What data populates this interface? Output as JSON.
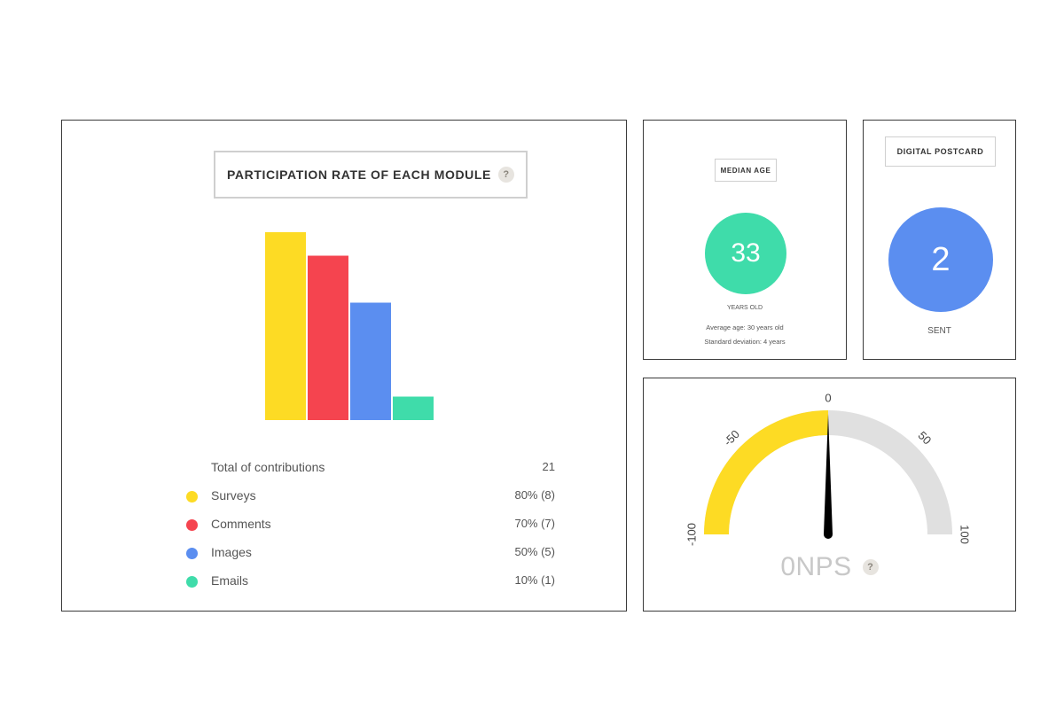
{
  "participation": {
    "title": "PARTICIPATION RATE OF EACH MODULE",
    "help_glyph": "?",
    "total_label": "Total of contributions",
    "total_value": "21",
    "legend": [
      {
        "label": "Surveys",
        "value_text": "80% (8)",
        "color": "#fddb24"
      },
      {
        "label": "Comments",
        "value_text": "70% (7)",
        "color": "#f5444f"
      },
      {
        "label": "Images",
        "value_text": "50% (5)",
        "color": "#5b8ef0"
      },
      {
        "label": "Emails",
        "value_text": "10% (1)",
        "color": "#3fdcaa"
      }
    ]
  },
  "chart_data": {
    "type": "bar",
    "categories": [
      "Surveys",
      "Comments",
      "Images",
      "Emails"
    ],
    "values": [
      80,
      70,
      50,
      10
    ],
    "colors": [
      "#fddb24",
      "#f5444f",
      "#5b8ef0",
      "#3fdcaa"
    ],
    "ylim": [
      0,
      80
    ],
    "grid": false,
    "legend": "bottom"
  },
  "median_age": {
    "title": "MEDIAN AGE",
    "value": "33",
    "unit": "YEARS OLD",
    "average": "Average age: 30 years old",
    "std_dev": "Standard deviation: 4 years",
    "color": "#3fdcaa"
  },
  "postcard": {
    "title": "DIGITAL POSTCARD",
    "value": "2",
    "unit": "SENT",
    "color": "#5b8ef0"
  },
  "nps": {
    "value": 0,
    "min": -100,
    "max": 100,
    "ticks": [
      "-100",
      "-50",
      "0",
      "50",
      "100"
    ],
    "readout": "0NPS",
    "help_glyph": "?",
    "fill_color": "#fddb24",
    "track_color": "#e0e0e0"
  }
}
